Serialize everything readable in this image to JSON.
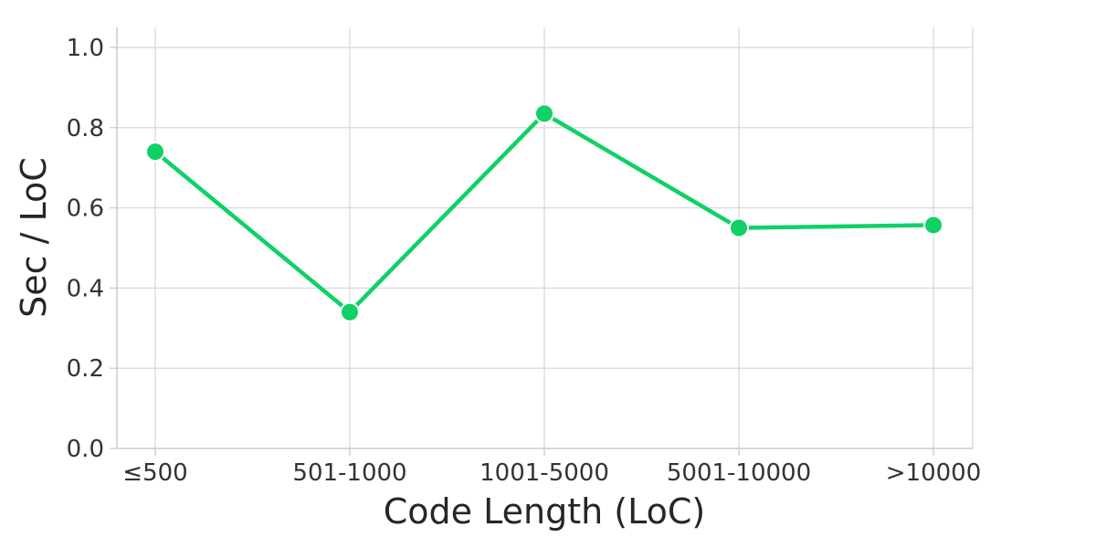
{
  "chart_data": {
    "type": "line",
    "title": "",
    "xlabel": "Code Length (LoC)",
    "ylabel": "Sec / LoC",
    "categories": [
      "≤500",
      "501-1000",
      "1001-5000",
      "5001-10000",
      ">10000"
    ],
    "series": [
      {
        "values": [
          0.74,
          0.34,
          0.835,
          0.55,
          0.557
        ],
        "color": "#0fd166"
      }
    ],
    "ylim": [
      0.0,
      1.05
    ],
    "yticks": [
      0.0,
      0.2,
      0.4,
      0.6,
      0.8,
      1.0
    ],
    "ytick_labels": [
      "0.0",
      "0.2",
      "0.4",
      "0.6",
      "0.8",
      "1.0"
    ],
    "grid": true,
    "marker": "circle"
  }
}
